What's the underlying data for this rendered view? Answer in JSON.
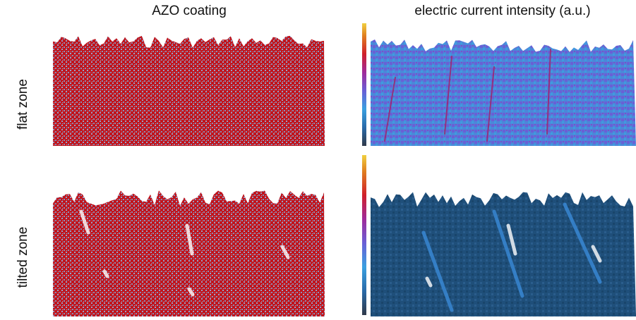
{
  "columns": {
    "left": "AZO coating",
    "right": "electric current intensity (a.u.)"
  },
  "rows": {
    "top": "flat zone",
    "bottom": "tilted zone"
  }
}
